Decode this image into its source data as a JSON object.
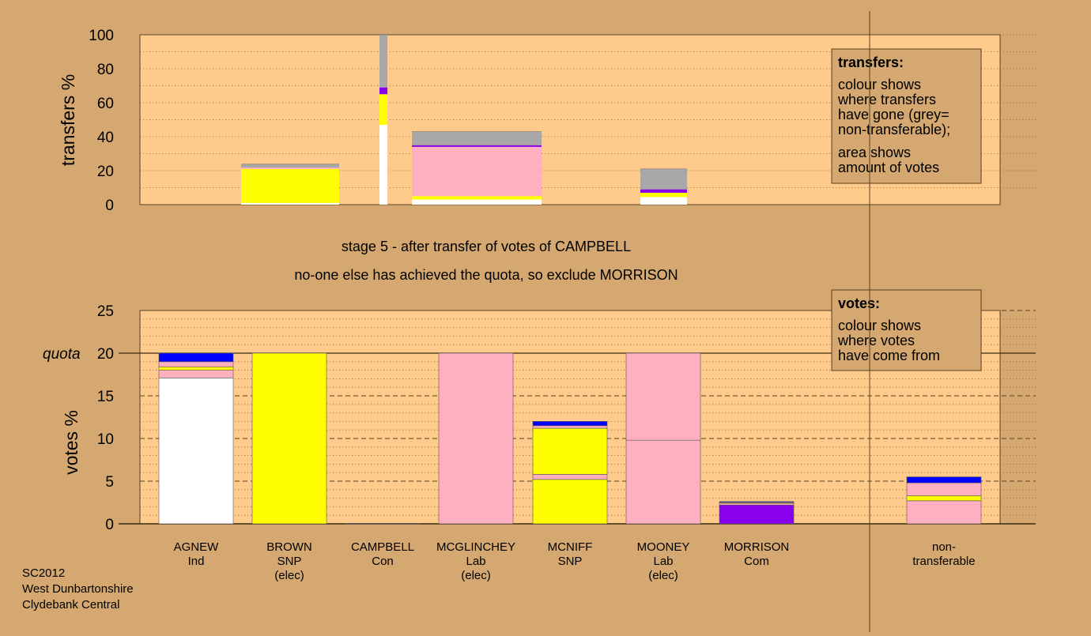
{
  "colors": {
    "background": "#d4a870",
    "plot_background": "#ffcb8c",
    "Ind": "#ffffff",
    "SNP": "#ffff00",
    "Con": "#0000ff",
    "Lab": "#ffb0c0",
    "Com": "#8800ee",
    "non_transferable": "#a8a8a8"
  },
  "titles": {
    "line1": "stage 5 - after transfer of votes of CAMPBELL",
    "line2": "no-one else has achieved the quota, so exclude MORRISON"
  },
  "footer": [
    "SC2012",
    "West Dunbartonshire",
    "Clydebank Central"
  ],
  "legend_transfers": {
    "heading": "transfers:",
    "lines": [
      "colour shows",
      "where transfers",
      "have gone (grey=",
      "non-transferable);",
      "area shows",
      "amount of votes"
    ]
  },
  "legend_votes": {
    "heading": "votes:",
    "lines": [
      "colour shows",
      "where votes",
      "have come from"
    ]
  },
  "chart_data": [
    {
      "type": "bar",
      "ylabel": "transfers %",
      "ylim": [
        0,
        100
      ],
      "yticks": [
        0,
        20,
        40,
        60,
        80,
        100
      ],
      "grid": "dotted",
      "note": "stacked bars: widths show votes transferred, colours show destination",
      "bars": [
        {
          "candidate": "AGNEW",
          "segments": [
            {
              "party": "Ind",
              "value": 1
            },
            {
              "party": "SNP",
              "value": 20
            },
            {
              "party": "Lab",
              "value": 0.8
            },
            {
              "party": "non_transferable",
              "value": 2
            }
          ]
        },
        {
          "candidate": "CAMPBELL",
          "segments": [
            {
              "party": "Ind",
              "value": 47
            },
            {
              "party": "SNP",
              "value": 18
            },
            {
              "party": "Com",
              "value": 4
            },
            {
              "party": "non_transferable",
              "value": 31
            }
          ]
        },
        {
          "candidate": "MCGLINCHEY",
          "segments": [
            {
              "party": "Ind",
              "value": 3
            },
            {
              "party": "SNP",
              "value": 2
            },
            {
              "party": "Lab",
              "value": 29
            },
            {
              "party": "Com",
              "value": 1
            },
            {
              "party": "non_transferable",
              "value": 8
            }
          ]
        },
        {
          "candidate": "MOONEY",
          "segments": [
            {
              "party": "Ind",
              "value": 4.5
            },
            {
              "party": "SNP",
              "value": 2.5
            },
            {
              "party": "Com",
              "value": 2
            },
            {
              "party": "non_transferable",
              "value": 12
            }
          ]
        }
      ]
    },
    {
      "type": "bar",
      "ylabel": "votes %",
      "ylim": [
        0,
        25
      ],
      "yticks": [
        0,
        5,
        10,
        15,
        20,
        25
      ],
      "quota_label": "quota",
      "quota": 20,
      "categories": [
        {
          "name": "AGNEW",
          "party": "Ind",
          "status": ""
        },
        {
          "name": "BROWN",
          "party": "SNP",
          "status": "(elec)"
        },
        {
          "name": "CAMPBELL",
          "party": "Con",
          "status": ""
        },
        {
          "name": "MCGLINCHEY",
          "party": "Lab",
          "status": "(elec)"
        },
        {
          "name": "MCNIFF",
          "party": "SNP",
          "status": ""
        },
        {
          "name": "MOONEY",
          "party": "Lab",
          "status": "(elec)"
        },
        {
          "name": "MORRISON",
          "party": "Com",
          "status": ""
        }
      ],
      "nontransferable_label": [
        "non-",
        "transferable"
      ],
      "bars": [
        {
          "candidate": "AGNEW",
          "segments": [
            {
              "party": "Ind",
              "value": 17.1
            },
            {
              "party": "Lab",
              "value": 0.9
            },
            {
              "party": "SNP",
              "value": 0.4
            },
            {
              "party": "Lab",
              "value": 0.6
            },
            {
              "party": "Con",
              "value": 1.0
            }
          ]
        },
        {
          "candidate": "BROWN",
          "segments": [
            {
              "party": "SNP",
              "value": 20
            }
          ]
        },
        {
          "candidate": "CAMPBELL",
          "segments": [
            {
              "party": "Con",
              "value": 0.05
            }
          ]
        },
        {
          "candidate": "MCGLINCHEY",
          "segments": [
            {
              "party": "Lab",
              "value": 20
            }
          ]
        },
        {
          "candidate": "MCNIFF",
          "segments": [
            {
              "party": "SNP",
              "value": 5.2
            },
            {
              "party": "Lab",
              "value": 0.6
            },
            {
              "party": "SNP",
              "value": 5.4
            },
            {
              "party": "Lab",
              "value": 0.3
            },
            {
              "party": "Con",
              "value": 0.5
            }
          ]
        },
        {
          "candidate": "MOONEY",
          "segments": [
            {
              "party": "Lab",
              "value": 9.8
            },
            {
              "party": "Lab",
              "value": 10.2
            }
          ]
        },
        {
          "candidate": "MORRISON",
          "segments": [
            {
              "party": "Com",
              "value": 2.2
            },
            {
              "party": "Lab",
              "value": 0.2
            },
            {
              "party": "SNP",
              "value": 0.1
            },
            {
              "party": "Con",
              "value": 0.1
            }
          ]
        },
        {
          "candidate": "non-transferable",
          "segments": [
            {
              "party": "Lab",
              "value": 2.7
            },
            {
              "party": "SNP",
              "value": 0.6
            },
            {
              "party": "Lab",
              "value": 1.5
            },
            {
              "party": "Con",
              "value": 0.7
            }
          ]
        }
      ]
    }
  ]
}
